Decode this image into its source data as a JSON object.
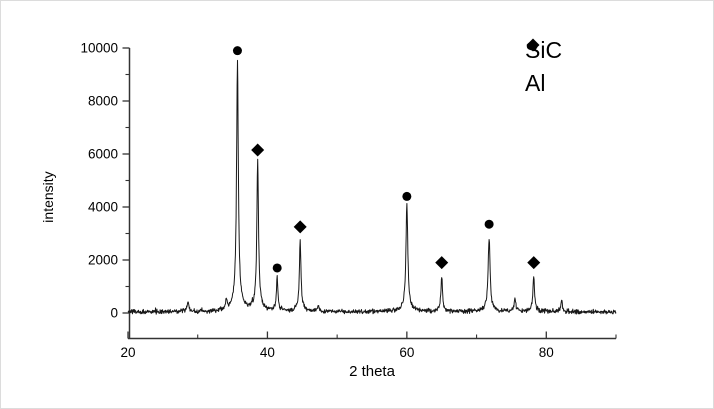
{
  "figure": {
    "background": "#ffffff",
    "axis_color": "#333333",
    "trace_color": "#181818",
    "marker_color": "#000000",
    "text_color": "#000000"
  },
  "chart_data": {
    "type": "line",
    "title": "",
    "xlabel": "2 theta",
    "ylabel": "intensity",
    "xlim": [
      20,
      90
    ],
    "ylim": [
      -1000,
      10000
    ],
    "grid": false,
    "legend_position": "top-right",
    "x_major_ticks": [
      20,
      40,
      60,
      80
    ],
    "x_minor_ticks": [
      30,
      50,
      70,
      90
    ],
    "y_major_ticks": [
      0,
      2000,
      4000,
      6000,
      8000,
      10000
    ],
    "y_minor_ticks": [
      1000,
      3000,
      5000,
      7000,
      9000
    ],
    "noise_baseline": 45,
    "noise_amplitude": 105,
    "peaks": [
      {
        "two_theta": 28.6,
        "intensity": 380,
        "hwhm": 0.12,
        "phase": ""
      },
      {
        "two_theta": 34.1,
        "intensity": 350,
        "hwhm": 0.12,
        "phase": ""
      },
      {
        "two_theta": 35.7,
        "intensity": 9150,
        "hwhm": 0.15,
        "phase": "SiC"
      },
      {
        "two_theta": 38.6,
        "intensity": 5500,
        "hwhm": 0.14,
        "phase": "Al"
      },
      {
        "two_theta": 41.4,
        "intensity": 1200,
        "hwhm": 0.13,
        "phase": "SiC"
      },
      {
        "two_theta": 44.7,
        "intensity": 2550,
        "hwhm": 0.14,
        "phase": "Al"
      },
      {
        "two_theta": 47.3,
        "intensity": 230,
        "hwhm": 0.13,
        "phase": ""
      },
      {
        "two_theta": 60.0,
        "intensity": 3900,
        "hwhm": 0.16,
        "phase": "SiC"
      },
      {
        "two_theta": 65.0,
        "intensity": 1300,
        "hwhm": 0.13,
        "phase": "Al"
      },
      {
        "two_theta": 71.8,
        "intensity": 2700,
        "hwhm": 0.16,
        "phase": "SiC"
      },
      {
        "two_theta": 75.5,
        "intensity": 500,
        "hwhm": 0.13,
        "phase": ""
      },
      {
        "two_theta": 78.2,
        "intensity": 1300,
        "hwhm": 0.14,
        "phase": "Al"
      },
      {
        "two_theta": 82.2,
        "intensity": 430,
        "hwhm": 0.13,
        "phase": ""
      }
    ],
    "markers": [
      {
        "two_theta": 35.7,
        "y": 9900,
        "symbol": "circle",
        "phase": "SiC"
      },
      {
        "two_theta": 38.6,
        "y": 6150,
        "symbol": "diamond",
        "phase": "Al"
      },
      {
        "two_theta": 41.4,
        "y": 1700,
        "symbol": "circle",
        "phase": "SiC"
      },
      {
        "two_theta": 44.7,
        "y": 3250,
        "symbol": "diamond",
        "phase": "Al"
      },
      {
        "two_theta": 60.0,
        "y": 4400,
        "symbol": "circle",
        "phase": "SiC"
      },
      {
        "two_theta": 65.0,
        "y": 1900,
        "symbol": "diamond",
        "phase": "Al"
      },
      {
        "two_theta": 71.8,
        "y": 3350,
        "symbol": "circle",
        "phase": "SiC"
      },
      {
        "two_theta": 78.2,
        "y": 1900,
        "symbol": "diamond",
        "phase": "Al"
      }
    ],
    "legend": [
      {
        "symbol": "circle",
        "label": "SiC"
      },
      {
        "symbol": "diamond",
        "label": "Al"
      }
    ]
  }
}
